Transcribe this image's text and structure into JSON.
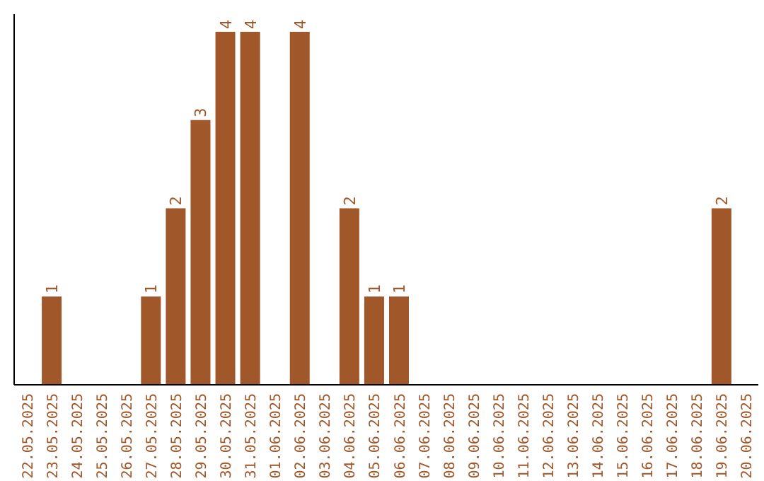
{
  "chart_data": {
    "type": "bar",
    "categories": [
      "22.05.2025",
      "23.05.2025",
      "24.05.2025",
      "25.05.2025",
      "26.05.2025",
      "27.05.2025",
      "28.05.2025",
      "29.05.2025",
      "30.05.2025",
      "31.05.2025",
      "01.06.2025",
      "02.06.2025",
      "03.06.2025",
      "04.06.2025",
      "05.06.2025",
      "06.06.2025",
      "07.06.2025",
      "08.06.2025",
      "09.06.2025",
      "10.06.2025",
      "11.06.2025",
      "12.06.2025",
      "13.06.2025",
      "14.06.2025",
      "15.06.2025",
      "16.06.2025",
      "17.06.2025",
      "18.06.2025",
      "19.06.2025",
      "20.06.2025"
    ],
    "values": [
      null,
      1,
      null,
      null,
      null,
      1,
      2,
      3,
      4,
      4,
      null,
      4,
      null,
      2,
      1,
      1,
      null,
      null,
      null,
      null,
      null,
      null,
      null,
      null,
      null,
      null,
      null,
      null,
      2,
      null
    ],
    "data_labels": true,
    "color": "#a0572a",
    "grid": false,
    "legend": false
  }
}
